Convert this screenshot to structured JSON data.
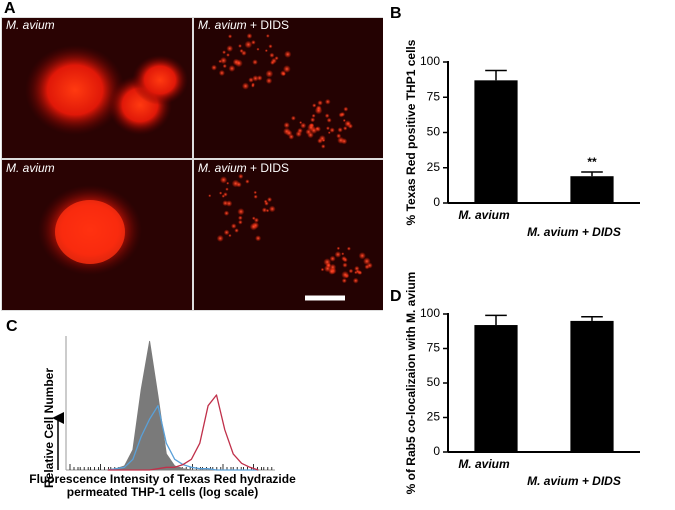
{
  "panel_labels": [
    "A",
    "B",
    "C",
    "D"
  ],
  "images": [
    {
      "label": "M. avium"
    },
    {
      "label": "M. avium",
      "suffix": "+ DIDS"
    },
    {
      "label": "M. avium"
    },
    {
      "label": "M. avium",
      "suffix": "+ DIDS"
    }
  ],
  "chart_data": [
    {
      "type": "bar",
      "ylabel": "% Texas Red positive THP1 cells",
      "categories": [
        "M. avium",
        "M. avium + DIDS"
      ],
      "values": [
        87,
        19
      ],
      "errors": [
        7,
        3
      ],
      "annotations": [
        null,
        "**"
      ],
      "color": "#000000",
      "ylim": [
        0,
        100
      ],
      "yticks": [
        0,
        25,
        50,
        75,
        100
      ]
    },
    {
      "type": "bar",
      "ylabel": "% of Rab5 co-localizaion with M. avium",
      "categories": [
        "M. avium",
        "M. avium + DIDS"
      ],
      "values": [
        92,
        95
      ],
      "errors": [
        7,
        3
      ],
      "color": "#000000",
      "ylim": [
        0,
        100
      ],
      "yticks": [
        0,
        25,
        50,
        75,
        100
      ]
    },
    {
      "type": "line",
      "ylabel": "Relative Cell Number",
      "xlabel": [
        "Fluorescence Intensity of Texas Red hydrazide",
        "permeated THP-1 cells (log scale)"
      ],
      "x": [
        20,
        24,
        28,
        32,
        36,
        40,
        44,
        48,
        52,
        56,
        60,
        64,
        68,
        72,
        76,
        80,
        84,
        88,
        92
      ],
      "xlim": [
        0,
        100
      ],
      "ylim": [
        0,
        100
      ],
      "series": [
        {
          "color": "#7a7a7a",
          "area": true,
          "values": [
            0,
            1,
            3,
            15,
            60,
            96,
            55,
            12,
            3,
            1,
            0,
            0,
            0,
            0,
            0,
            0,
            0,
            0,
            0
          ]
        },
        {
          "color": "#5aa0d8",
          "area": false,
          "values": [
            0,
            1,
            2,
            8,
            25,
            38,
            48,
            20,
            8,
            4,
            2,
            1,
            1,
            0,
            0,
            0,
            0,
            0,
            0
          ]
        },
        {
          "color": "#c0304a",
          "area": false,
          "values": [
            0,
            0,
            0,
            0,
            0,
            0,
            1,
            2,
            2,
            4,
            8,
            20,
            48,
            56,
            30,
            12,
            5,
            2,
            0
          ]
        }
      ]
    }
  ]
}
